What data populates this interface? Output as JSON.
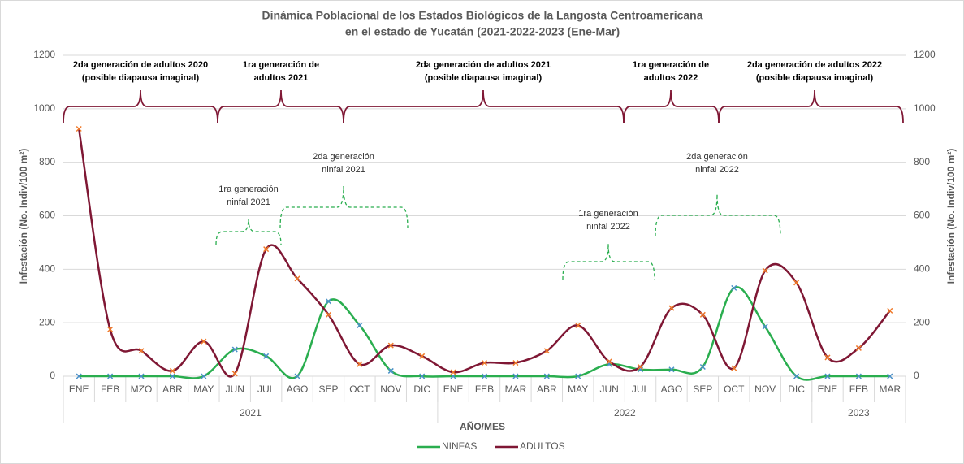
{
  "chart_data": {
    "type": "line",
    "title": [
      "Dinámica Poblacional de los Estados Biológicos de la Langosta Centroamericana",
      "en el estado de Yucatán (2021-2022-2023 (Ene-Mar)"
    ],
    "y_label": "Infestación (No. Indiv/100 m²)",
    "y2_label": "Infestación (No. Indiv/100 m²)",
    "x_label": "AÑO/MES",
    "categories": [
      "ENE",
      "FEB",
      "MZO",
      "ABR",
      "MAY",
      "JUN",
      "JUL",
      "AGO",
      "SEP",
      "OCT",
      "NOV",
      "DIC",
      "ENE",
      "FEB",
      "MAR",
      "ABR",
      "MAY",
      "JUN",
      "JUL",
      "AGO",
      "SEP",
      "OCT",
      "NOV",
      "DIC",
      "ENE",
      "FEB",
      "MAR"
    ],
    "category_groups": [
      {
        "label": "2021",
        "count": 12
      },
      {
        "label": "2022",
        "count": 12
      },
      {
        "label": "2023",
        "count": 3
      }
    ],
    "series": [
      {
        "name": "NINFAS",
        "color": "#2aae4f",
        "values": [
          0,
          0,
          0,
          0,
          0,
          100,
          75,
          0,
          280,
          190,
          20,
          0,
          0,
          0,
          0,
          0,
          0,
          45,
          25,
          25,
          35,
          330,
          185,
          0,
          0,
          0,
          0
        ]
      },
      {
        "name": "ADULTOS",
        "color": "#7f1734",
        "values": [
          925,
          175,
          95,
          20,
          130,
          10,
          475,
          365,
          230,
          45,
          115,
          75,
          15,
          50,
          50,
          95,
          190,
          55,
          35,
          255,
          230,
          30,
          395,
          350,
          70,
          105,
          245
        ]
      }
    ],
    "ylim": [
      0,
      1200
    ],
    "yticks": [
      0,
      200,
      400,
      600,
      800,
      1000,
      1200
    ],
    "y2lim": [
      0,
      1200
    ],
    "y2ticks": [
      0,
      200,
      400,
      600,
      800,
      1000,
      1200
    ],
    "grid": true,
    "legend": "bottom",
    "smooth": true,
    "annotations": [
      {
        "lines": [
          "2da generación de adultos 2020",
          "(posible diapausa imaginal)"
        ],
        "color": "#7f1734"
      },
      {
        "lines": [
          "1ra generación de",
          "adultos 2021"
        ],
        "color": "#7f1734"
      },
      {
        "lines": [
          "2da generación de adultos 2021",
          "(posible diapausa imaginal)"
        ],
        "color": "#7f1734"
      },
      {
        "lines": [
          "1ra generación de",
          "adultos 2022"
        ],
        "color": "#7f1734"
      },
      {
        "lines": [
          "2da generación de adultos 2022",
          "(posible diapausa imaginal)"
        ],
        "color": "#7f1734"
      },
      {
        "lines": [
          "1ra generación",
          "ninfal 2021"
        ],
        "color": "#2aae4f"
      },
      {
        "lines": [
          "2da generación",
          "ninfal 2021"
        ],
        "color": "#2aae4f"
      },
      {
        "lines": [
          "1ra generación",
          "ninfal 2022"
        ],
        "color": "#2aae4f"
      },
      {
        "lines": [
          "2da  generación",
          "ninfal 2022"
        ],
        "color": "#2aae4f"
      }
    ]
  }
}
